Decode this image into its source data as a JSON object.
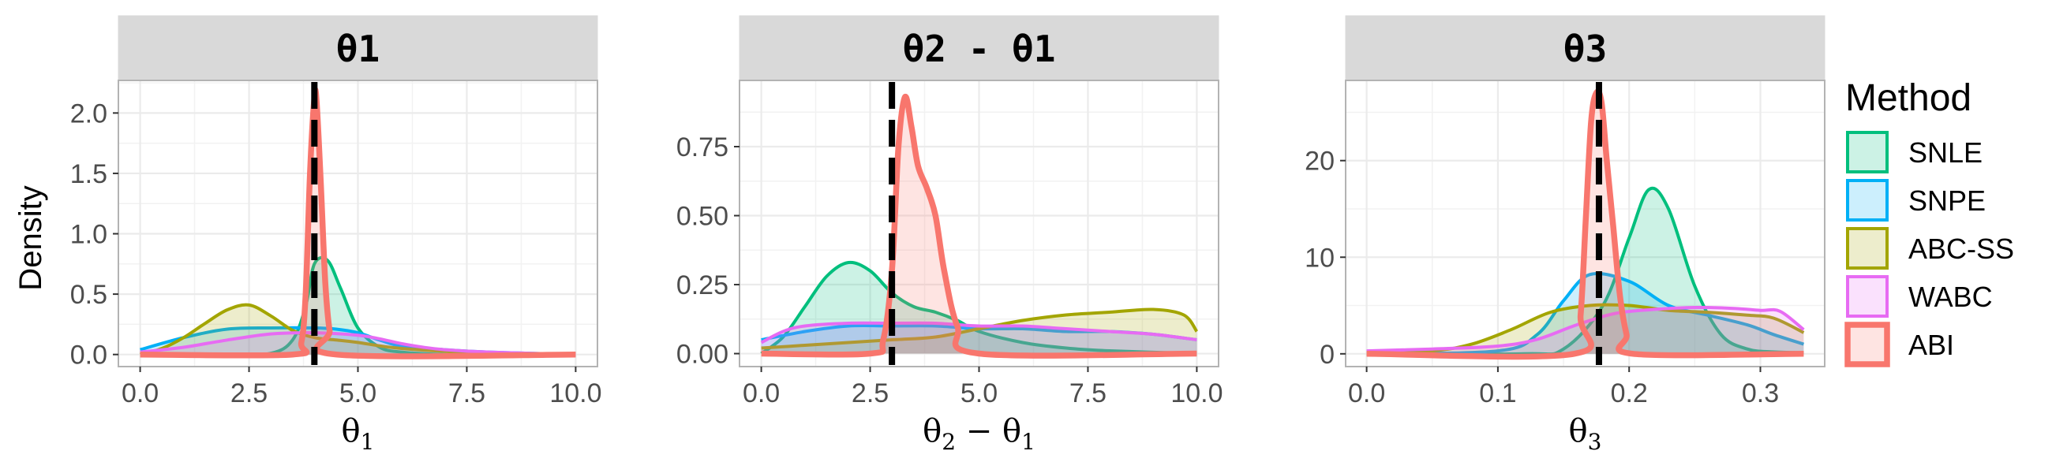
{
  "chart_data": {
    "type": "area",
    "y_axis_label": "Density",
    "legend": {
      "title": "Method",
      "placement": "right",
      "entries": [
        {
          "name": "SNLE",
          "color": "#00BF7D"
        },
        {
          "name": "SNPE",
          "color": "#00B0F6"
        },
        {
          "name": "ABC-SS",
          "color": "#A3A500"
        },
        {
          "name": "WABC",
          "color": "#E76BF3"
        },
        {
          "name": "ABI",
          "color": "#F8766D"
        }
      ]
    },
    "panels": [
      {
        "strip": "θ1",
        "xlabel_main": "θ",
        "xlabel_sub": "1",
        "xlim": [
          -0.5,
          10.5
        ],
        "ylim": [
          -0.1,
          2.27
        ],
        "xticks": [
          0,
          2.5,
          5,
          7.5,
          10
        ],
        "xtick_labels": [
          "0.0",
          "2.5",
          "5.0",
          "7.5",
          "10.0"
        ],
        "yticks": [
          0,
          0.5,
          1,
          1.5,
          2
        ],
        "ytick_labels": [
          "0.0",
          "0.5",
          "1.0",
          "1.5",
          "2.0"
        ],
        "true_value": 4.0,
        "series": [
          {
            "method": "SNLE",
            "x": [
              0.2,
              1,
              2,
              3,
              3.5,
              3.8,
              4.0,
              4.3,
              4.6,
              5.0,
              5.5,
              6,
              7,
              8,
              10
            ],
            "y": [
              0.0,
              0.0,
              0.0,
              0.01,
              0.12,
              0.4,
              0.75,
              0.78,
              0.55,
              0.22,
              0.06,
              0.02,
              0.0,
              0.0,
              0.0
            ]
          },
          {
            "method": "SNPE",
            "x": [
              0,
              1,
              2,
              3,
              4,
              4.5,
              5,
              5.5,
              6,
              7,
              8,
              10
            ],
            "y": [
              0.04,
              0.14,
              0.21,
              0.22,
              0.22,
              0.21,
              0.18,
              0.12,
              0.07,
              0.04,
              0.02,
              0.0
            ]
          },
          {
            "method": "ABC-SS",
            "x": [
              0,
              0.5,
              1,
              1.5,
              2,
              2.5,
              3,
              3.5,
              4,
              4.5,
              5,
              6,
              8,
              10
            ],
            "y": [
              0.0,
              0.05,
              0.14,
              0.26,
              0.37,
              0.41,
              0.32,
              0.2,
              0.14,
              0.12,
              0.1,
              0.05,
              0.01,
              0.0
            ]
          },
          {
            "method": "WABC",
            "x": [
              0,
              1,
              2,
              3,
              4,
              5,
              5.5,
              6,
              6.5,
              7,
              8,
              9,
              10
            ],
            "y": [
              0.02,
              0.06,
              0.12,
              0.17,
              0.18,
              0.16,
              0.13,
              0.09,
              0.06,
              0.04,
              0.02,
              0.01,
              0.0
            ]
          },
          {
            "method": "ABI",
            "x": [
              0,
              3.5,
              3.7,
              3.8,
              3.9,
              4.0,
              4.05,
              4.15,
              4.25,
              4.35,
              4.5,
              10
            ],
            "y": [
              0.0,
              0.0,
              0.1,
              0.5,
              1.5,
              2.12,
              2.1,
              1.4,
              0.6,
              0.2,
              0.0,
              0.0
            ]
          }
        ]
      },
      {
        "strip": "θ2 - θ1",
        "xlabel_main": "θ",
        "xlabel_sub": "2",
        "xlabel_rest": " − θ",
        "xlabel_sub2": "1",
        "xlim": [
          -0.5,
          10.5
        ],
        "ylim": [
          -0.047,
          0.99
        ],
        "xticks": [
          0,
          2.5,
          5,
          7.5,
          10
        ],
        "xtick_labels": [
          "0.0",
          "2.5",
          "5.0",
          "7.5",
          "10.0"
        ],
        "yticks": [
          0,
          0.25,
          0.5,
          0.75
        ],
        "ytick_labels": [
          "0.00",
          "0.25",
          "0.50",
          "0.75"
        ],
        "true_value": 3.0,
        "series": [
          {
            "method": "SNLE",
            "x": [
              0,
              0.5,
              1,
              1.5,
              2,
              2.5,
              3,
              3.5,
              4,
              4.5,
              5,
              6,
              7,
              8,
              10
            ],
            "y": [
              0.0,
              0.06,
              0.17,
              0.28,
              0.33,
              0.3,
              0.22,
              0.17,
              0.15,
              0.12,
              0.08,
              0.04,
              0.02,
              0.01,
              0.0
            ]
          },
          {
            "method": "SNPE",
            "x": [
              0,
              1,
              2,
              3,
              4,
              5,
              6,
              7,
              8,
              9,
              10
            ],
            "y": [
              0.05,
              0.08,
              0.1,
              0.1,
              0.1,
              0.09,
              0.09,
              0.08,
              0.08,
              0.07,
              0.05
            ]
          },
          {
            "method": "ABC-SS",
            "x": [
              0,
              1,
              2,
              3,
              4,
              5,
              6,
              7,
              8,
              9,
              9.7,
              10
            ],
            "y": [
              0.02,
              0.03,
              0.04,
              0.05,
              0.06,
              0.09,
              0.12,
              0.14,
              0.15,
              0.16,
              0.14,
              0.08
            ]
          },
          {
            "method": "WABC",
            "x": [
              0,
              0.5,
              1,
              2,
              3,
              4,
              5,
              6,
              7,
              8,
              9,
              10
            ],
            "y": [
              0.04,
              0.08,
              0.1,
              0.11,
              0.11,
              0.11,
              0.1,
              0.1,
              0.09,
              0.08,
              0.07,
              0.05
            ]
          },
          {
            "method": "ABI",
            "x": [
              0,
              2.5,
              2.8,
              3.0,
              3.15,
              3.3,
              3.45,
              3.6,
              3.8,
              4.0,
              4.2,
              4.5,
              5.0,
              10
            ],
            "y": [
              0.0,
              0.0,
              0.05,
              0.3,
              0.75,
              0.93,
              0.82,
              0.68,
              0.6,
              0.5,
              0.3,
              0.1,
              0.0,
              0.0
            ]
          }
        ]
      },
      {
        "strip": "θ3",
        "xlabel_main": "θ",
        "xlabel_sub": "3",
        "xlim": [
          -0.016,
          0.349
        ],
        "ylim": [
          -1.32,
          28.3
        ],
        "xticks": [
          0,
          0.1,
          0.2,
          0.3
        ],
        "xtick_labels": [
          "0.0",
          "0.1",
          "0.2",
          "0.3"
        ],
        "yticks": [
          0,
          10,
          20
        ],
        "ytick_labels": [
          "0",
          "10",
          "20"
        ],
        "true_value": 0.177,
        "series": [
          {
            "method": "SNLE",
            "x": [
              0,
              0.12,
              0.15,
              0.18,
              0.2,
              0.215,
              0.23,
              0.25,
              0.27,
              0.29,
              0.31,
              0.333
            ],
            "y": [
              0.0,
              0.0,
              0.5,
              5.0,
              12.0,
              17.0,
              15.0,
              7.0,
              2.0,
              0.5,
              0.2,
              0.1
            ]
          },
          {
            "method": "SNPE",
            "x": [
              0,
              0.1,
              0.13,
              0.15,
              0.17,
              0.2,
              0.23,
              0.26,
              0.29,
              0.31,
              0.333
            ],
            "y": [
              0.0,
              0.3,
              2.0,
              5.5,
              8.2,
              7.5,
              5.0,
              4.0,
              3.0,
              2.0,
              1.0
            ]
          },
          {
            "method": "ABC-SS",
            "x": [
              0,
              0.05,
              0.08,
              0.11,
              0.14,
              0.17,
              0.2,
              0.23,
              0.26,
              0.29,
              0.31,
              0.333
            ],
            "y": [
              0.0,
              0.3,
              1.0,
              2.5,
              4.3,
              5.0,
              5.0,
              4.5,
              4.3,
              4.0,
              3.7,
              2.2
            ]
          },
          {
            "method": "WABC",
            "x": [
              0,
              0.05,
              0.1,
              0.13,
              0.16,
              0.19,
              0.22,
              0.25,
              0.28,
              0.3,
              0.315,
              0.333
            ],
            "y": [
              0.3,
              0.5,
              0.8,
              1.5,
              3.0,
              4.2,
              4.6,
              4.8,
              4.7,
              4.5,
              4.4,
              2.5
            ]
          },
          {
            "method": "ABI",
            "x": [
              0,
              0.158,
              0.163,
              0.167,
              0.171,
              0.175,
              0.179,
              0.183,
              0.188,
              0.193,
              0.198,
              0.203,
              0.333
            ],
            "y": [
              0.0,
              0.0,
              4.0,
              14.0,
              24.0,
              27.0,
              26.0,
              20.0,
              13.0,
              6.0,
              2.0,
              0.0,
              0.0
            ]
          }
        ]
      }
    ]
  }
}
